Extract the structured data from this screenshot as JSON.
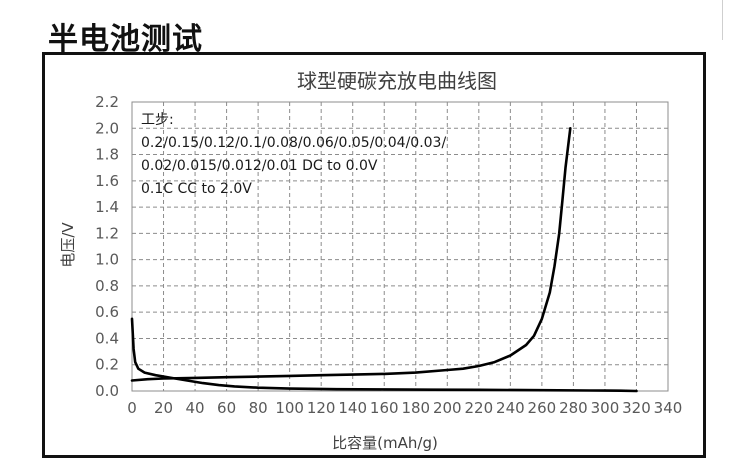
{
  "page": {
    "heading": "半电池测试"
  },
  "chart_data": {
    "type": "line",
    "title": "球型硬碳充放电曲线图",
    "xlabel": "比容量(mAh/g)",
    "ylabel": "电压/V",
    "xlim": [
      0,
      340
    ],
    "ylim": [
      0,
      2.2
    ],
    "x_ticks": [
      "0",
      "20",
      "40",
      "60",
      "80",
      "100",
      "120",
      "140",
      "160",
      "180",
      "200",
      "220",
      "240",
      "260",
      "280",
      "300",
      "320",
      "340"
    ],
    "y_ticks": [
      "0.0",
      "0.2",
      "0.4",
      "0.6",
      "0.8",
      "1.0",
      "1.2",
      "1.4",
      "1.6",
      "1.8",
      "2.0",
      "2.2"
    ],
    "grid": true,
    "annotation": {
      "lines": [
        "工步:",
        "0.2/0.15/0.12/0.1/0.08/0.06/0.05/0.04/0.03/",
        "0.02/0.015/0.012/0.01 DC to 0.0V",
        "0.1C CC to 2.0V"
      ]
    },
    "series": [
      {
        "x": [
          0,
          1,
          2,
          4,
          8,
          15,
          25,
          35,
          45,
          55,
          65,
          80,
          100,
          130,
          160,
          190,
          220,
          260,
          290,
          300,
          310,
          320
        ],
        "y": [
          0.55,
          0.32,
          0.22,
          0.17,
          0.14,
          0.12,
          0.1,
          0.08,
          0.06,
          0.045,
          0.035,
          0.025,
          0.018,
          0.014,
          0.012,
          0.01,
          0.009,
          0.006,
          0.004,
          0.003,
          0.002,
          0.0
        ]
      },
      {
        "x": [
          0,
          10,
          20,
          40,
          60,
          80,
          100,
          120,
          140,
          160,
          180,
          200,
          210,
          220,
          230,
          240,
          250,
          255,
          260,
          265,
          268,
          271,
          273,
          275,
          277,
          278
        ],
        "y": [
          0.08,
          0.09,
          0.095,
          0.1,
          0.105,
          0.11,
          0.115,
          0.12,
          0.125,
          0.13,
          0.14,
          0.16,
          0.17,
          0.19,
          0.22,
          0.27,
          0.35,
          0.42,
          0.55,
          0.75,
          0.95,
          1.2,
          1.45,
          1.7,
          1.9,
          2.0
        ]
      }
    ]
  }
}
